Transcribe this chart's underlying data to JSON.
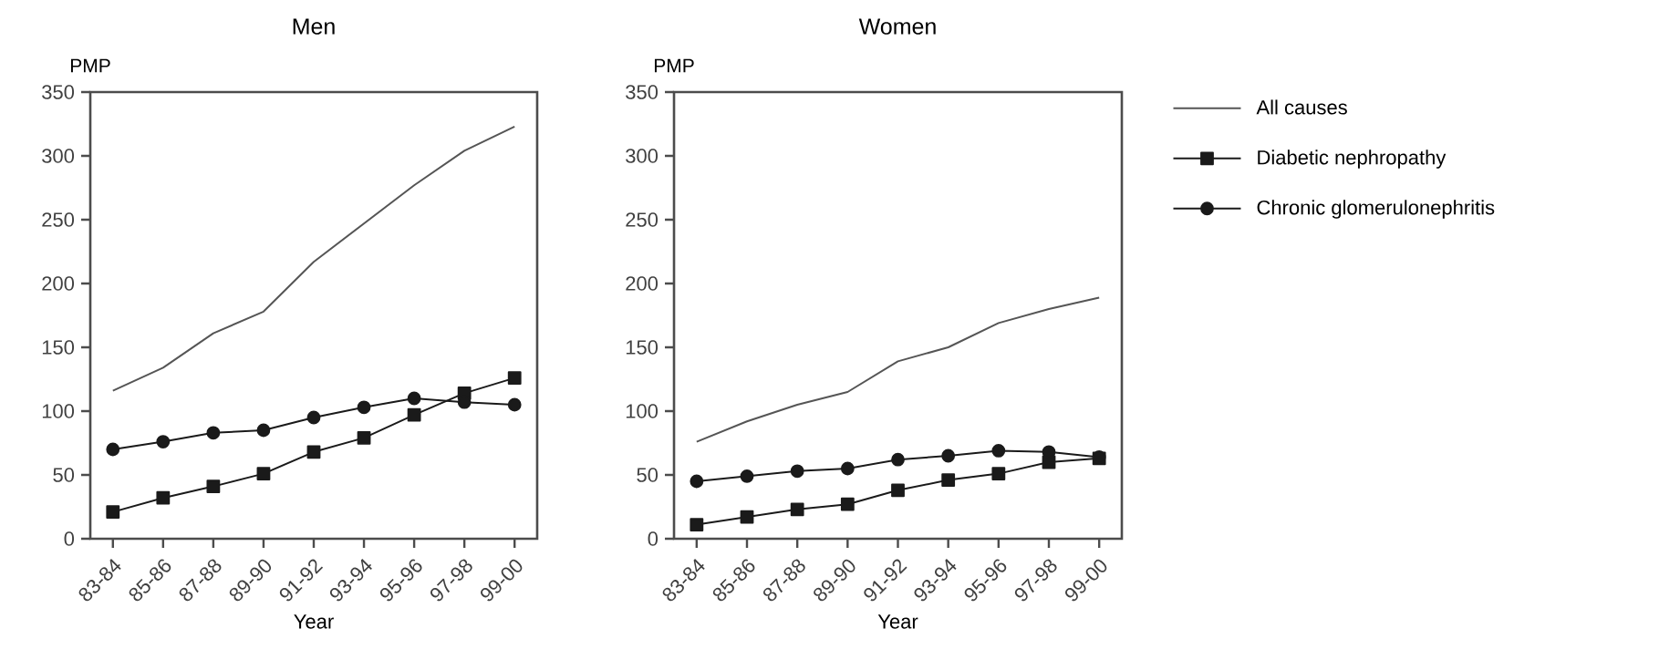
{
  "chart_data": [
    {
      "type": "line",
      "title": "Men",
      "ylabel": "PMP",
      "xlabel": "Year",
      "categories": [
        "83-84",
        "85-86",
        "87-88",
        "89-90",
        "91-92",
        "93-94",
        "95-96",
        "97-98",
        "99-00"
      ],
      "ylim": [
        0,
        350
      ],
      "yticks": [
        0,
        50,
        100,
        150,
        200,
        250,
        300,
        350
      ],
      "grid": false,
      "legend": false,
      "series": [
        {
          "color": "#555555",
          "marker": "none",
          "values": [
            116,
            134,
            161,
            178,
            217,
            247,
            277,
            304,
            323
          ]
        },
        {
          "color": "#1a1a1a",
          "marker": "square",
          "values": [
            21,
            32,
            41,
            51,
            68,
            79,
            97,
            114,
            126
          ]
        },
        {
          "color": "#1a1a1a",
          "marker": "circle",
          "values": [
            70,
            76,
            83,
            85,
            95,
            103,
            110,
            107,
            105
          ]
        }
      ]
    },
    {
      "type": "line",
      "title": "Women",
      "ylabel": "PMP",
      "xlabel": "Year",
      "categories": [
        "83-84",
        "85-86",
        "87-88",
        "89-90",
        "91-92",
        "93-94",
        "95-96",
        "97-98",
        "99-00"
      ],
      "ylim": [
        0,
        350
      ],
      "yticks": [
        0,
        50,
        100,
        150,
        200,
        250,
        300,
        350
      ],
      "grid": false,
      "legend": "right",
      "series": [
        {
          "name": "All causes",
          "color": "#555555",
          "marker": "none",
          "values": [
            76,
            92,
            105,
            115,
            139,
            150,
            169,
            180,
            189
          ]
        },
        {
          "name": "Diabetic nephropathy",
          "color": "#1a1a1a",
          "marker": "square",
          "values": [
            11,
            17,
            23,
            27,
            38,
            46,
            51,
            60,
            63
          ]
        },
        {
          "name": "Chronic glomerulonephritis",
          "color": "#1a1a1a",
          "marker": "circle",
          "values": [
            45,
            49,
            53,
            55,
            62,
            65,
            69,
            68,
            64
          ]
        }
      ]
    }
  ]
}
